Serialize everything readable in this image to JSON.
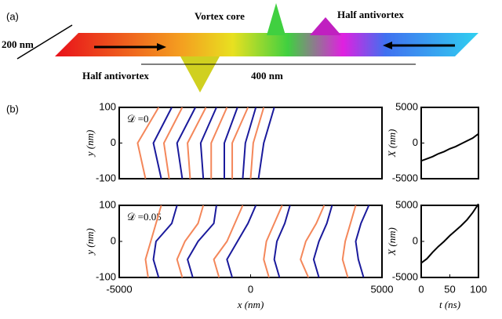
{
  "panel_a": {
    "label": "(a)",
    "width": "200 nm",
    "vortex_core": "Vortex core",
    "half_antivortex_right": "Half antivortex",
    "half_antivortex_left": "Half antivortex",
    "distance": "400 nm"
  },
  "panel_b": {
    "label": "(b)"
  },
  "chart_data": [
    {
      "type": "line",
      "annotation": "𝒟 =0",
      "x_label": "x (nm)",
      "y_label": "y (nm)",
      "xlim": [
        -5000,
        5000
      ],
      "ylim": [
        -100,
        100
      ],
      "yticks": [
        -100,
        0,
        100
      ],
      "y": [
        -100,
        0,
        100
      ],
      "series": [
        {
          "color": "#f4875a",
          "x": [
            -4000,
            -4300,
            -3500
          ]
        },
        {
          "color": "#1a1a9c",
          "x": [
            -3400,
            -3700,
            -3000
          ]
        },
        {
          "color": "#f4875a",
          "x": [
            -3100,
            -3300,
            -2600
          ]
        },
        {
          "color": "#1a1a9c",
          "x": [
            -2600,
            -2800,
            -2100
          ]
        },
        {
          "color": "#f4875a",
          "x": [
            -2300,
            -2400,
            -1700
          ]
        },
        {
          "color": "#1a1a9c",
          "x": [
            -1800,
            -1900,
            -1300
          ]
        },
        {
          "color": "#f4875a",
          "x": [
            -1500,
            -1500,
            -900
          ]
        },
        {
          "color": "#1a1a9c",
          "x": [
            -1000,
            -1000,
            -500
          ]
        },
        {
          "color": "#f4875a",
          "x": [
            -700,
            -700,
            -100
          ]
        },
        {
          "color": "#1a1a9c",
          "x": [
            -300,
            -200,
            200
          ]
        },
        {
          "color": "#f4875a",
          "x": [
            0,
            100,
            500
          ]
        },
        {
          "color": "#1a1a9c",
          "x": [
            300,
            500,
            900
          ]
        }
      ]
    },
    {
      "type": "line",
      "x_label": "t (ns)",
      "y_label": "X (nm)",
      "xlim": [
        0,
        100
      ],
      "ylim": [
        -5000,
        5000
      ],
      "yticks": [
        -5000,
        0,
        5000
      ],
      "x": [
        0,
        10,
        20,
        30,
        40,
        50,
        60,
        70,
        80,
        90,
        100
      ],
      "series": [
        {
          "color": "#000000",
          "values": [
            -2500,
            -2200,
            -1900,
            -1500,
            -1200,
            -800,
            -500,
            -100,
            300,
            700,
            1300
          ]
        }
      ]
    },
    {
      "type": "line",
      "annotation": "𝒟 =0.05",
      "x_label": "x (nm)",
      "y_label": "y (nm)",
      "xlim": [
        -5000,
        5000
      ],
      "ylim": [
        -100,
        100
      ],
      "xticks": [
        -5000,
        0,
        5000
      ],
      "yticks": [
        -100,
        0,
        100
      ],
      "y": [
        -100,
        -50,
        0,
        50,
        100
      ],
      "series": [
        {
          "color": "#f4875a",
          "x": [
            -3900,
            -4000,
            -3800,
            -3600,
            -3400
          ]
        },
        {
          "color": "#1a1a9c",
          "x": [
            -3500,
            -3700,
            -3600,
            -3000,
            -2800
          ]
        },
        {
          "color": "#f4875a",
          "x": [
            -2600,
            -2800,
            -2500,
            -2000,
            -1800
          ]
        },
        {
          "color": "#1a1a9c",
          "x": [
            -2200,
            -2400,
            -2000,
            -1400,
            -1300
          ]
        },
        {
          "color": "#f4875a",
          "x": [
            -1200,
            -1400,
            -900,
            -600,
            -300
          ]
        },
        {
          "color": "#1a1a9c",
          "x": [
            -700,
            -900,
            -500,
            -100,
            200
          ]
        },
        {
          "color": "#f4875a",
          "x": [
            700,
            500,
            600,
            900,
            1200
          ]
        },
        {
          "color": "#1a1a9c",
          "x": [
            1100,
            900,
            1000,
            1300,
            1500
          ]
        },
        {
          "color": "#f4875a",
          "x": [
            2200,
            1900,
            2100,
            2500,
            2800
          ]
        },
        {
          "color": "#1a1a9c",
          "x": [
            2600,
            2400,
            2600,
            2900,
            3100
          ]
        },
        {
          "color": "#f4875a",
          "x": [
            3700,
            3500,
            3600,
            3800,
            4000
          ]
        },
        {
          "color": "#1a1a9c",
          "x": [
            4300,
            4100,
            4000,
            4200,
            4500
          ]
        }
      ]
    },
    {
      "type": "line",
      "x_label": "t (ns)",
      "y_label": "X (nm)",
      "xlim": [
        0,
        100
      ],
      "ylim": [
        -5000,
        5000
      ],
      "xticks": [
        0,
        50,
        100
      ],
      "yticks": [
        -5000,
        0,
        5000
      ],
      "x": [
        0,
        10,
        20,
        30,
        40,
        50,
        60,
        70,
        80,
        90,
        100
      ],
      "series": [
        {
          "color": "#000000",
          "values": [
            -3000,
            -2400,
            -1500,
            -700,
            0,
            800,
            1500,
            2200,
            3000,
            4000,
            5200
          ]
        }
      ]
    }
  ]
}
